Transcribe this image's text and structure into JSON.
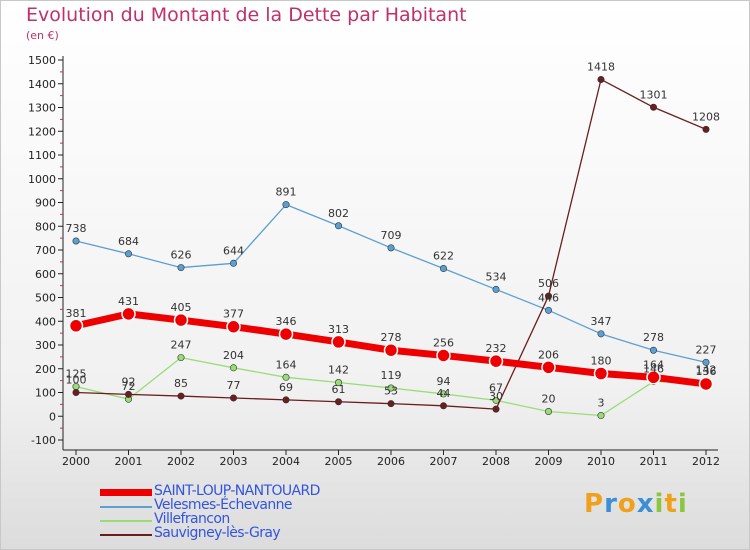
{
  "title": "Evolution du Montant de la Dette par Habitant",
  "subtitle": "(en €)",
  "logo": {
    "letters": [
      {
        "ch": "P",
        "color": "#f0a11a"
      },
      {
        "ch": "r",
        "color": "#3a8fd6"
      },
      {
        "ch": "o",
        "color": "#f0a11a"
      },
      {
        "ch": "x",
        "color": "#3a8fd6"
      },
      {
        "ch": "i",
        "color": "#8cc63f"
      },
      {
        "ch": "t",
        "color": "#f0a11a"
      },
      {
        "ch": "i",
        "color": "#8cc63f"
      }
    ]
  },
  "chart_data": {
    "type": "line",
    "title": "Evolution du Montant de la Dette par Habitant",
    "subtitle": "(en €)",
    "x": [
      2000,
      2001,
      2002,
      2003,
      2004,
      2005,
      2006,
      2007,
      2008,
      2009,
      2010,
      2011,
      2012
    ],
    "yticks": [
      -100,
      0,
      100,
      200,
      300,
      400,
      500,
      600,
      700,
      800,
      900,
      1000,
      1100,
      1200,
      1300,
      1400,
      1500
    ],
    "ylim": [
      -100,
      1500
    ],
    "grid": false,
    "legend_position": "bottom-left",
    "series": [
      {
        "name": "SAINT-LOUP-NANTOUARD",
        "color": "#ee0000",
        "values": [
          381,
          431,
          405,
          377,
          346,
          313,
          278,
          256,
          232,
          206,
          180,
          164,
          136
        ],
        "labels": [
          "381",
          "431",
          "405",
          "377",
          "346",
          "313",
          "278",
          "256",
          "232",
          "206",
          "180",
          "164",
          "136"
        ]
      },
      {
        "name": "Velesmes-Échevanne",
        "color": "#5c9fd2",
        "values": [
          738,
          684,
          626,
          644,
          891,
          802,
          709,
          622,
          534,
          446,
          347,
          278,
          227
        ],
        "labels": [
          "738",
          "684",
          "626",
          "644",
          "891",
          "802",
          "709",
          "622",
          "534",
          "446",
          "347",
          "278",
          "227"
        ]
      },
      {
        "name": "Villefrancon",
        "color": "#99dd77",
        "values": [
          125,
          72,
          247,
          204,
          164,
          142,
          119,
          94,
          67,
          20,
          3,
          146,
          142
        ],
        "labels": [
          "125",
          "72",
          "247",
          "204",
          "164",
          "142",
          "119",
          "94",
          "67",
          "20",
          "3",
          "146",
          "142"
        ]
      },
      {
        "name": "Sauvigney-lès-Gray",
        "color": "#6b1e1e",
        "values": [
          100,
          92,
          85,
          77,
          69,
          61,
          53,
          44,
          30,
          506,
          1418,
          1301,
          1208
        ],
        "labels": [
          "100",
          "92",
          "85",
          "77",
          "69",
          "61",
          "53",
          "44",
          "30",
          "506",
          "1418",
          "1301",
          "1208"
        ]
      }
    ]
  }
}
